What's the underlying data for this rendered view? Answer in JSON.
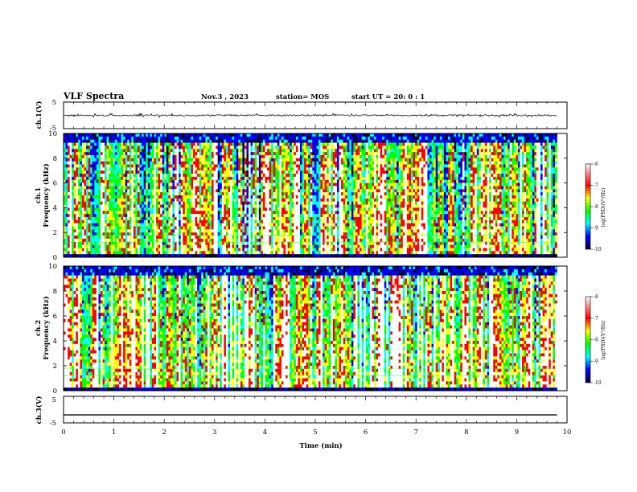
{
  "header": {
    "title": "VLF Spectra",
    "date": "Nov.3 , 2023",
    "station": "station= MOS",
    "start_ut": "start UT = 20: 0 : 1"
  },
  "chart_data": [
    {
      "type": "line",
      "panel": "ch1-waveform",
      "ylabel": "ch.1(V)",
      "ylim": [
        -5,
        5
      ],
      "y_ticks": [
        "5",
        "-5"
      ],
      "xlim": [
        0,
        10
      ],
      "description_values": {
        "signal_level_v": 0.0,
        "trace_extent_min": 9.8
      }
    },
    {
      "type": "heatmap",
      "panel": "ch1-spectrogram",
      "ylabel_top": "ch.1",
      "ylabel": "Frequency (kHz)",
      "ylim": [
        0,
        10
      ],
      "y_ticks": [
        "0",
        "2",
        "4",
        "6",
        "8",
        "10"
      ],
      "xlim": [
        0,
        10
      ],
      "colorbar": {
        "label": "log(PSD)(V²/Hz)",
        "ticks": [
          "-6",
          "-7",
          "-8",
          "-9",
          "-10"
        ],
        "range": [
          -10,
          -6
        ]
      }
    },
    {
      "type": "heatmap",
      "panel": "ch2-spectrogram",
      "ylabel_top": "ch.2",
      "ylabel": "Frequency (kHz)",
      "ylim": [
        0,
        10
      ],
      "y_ticks": [
        "0",
        "2",
        "4",
        "6",
        "8",
        "10"
      ],
      "xlim": [
        0,
        10
      ],
      "colorbar": {
        "label": "log(PSD)(V²/Hz)",
        "ticks": [
          "-6",
          "-7",
          "-8",
          "-9",
          "-10"
        ],
        "range": [
          -10,
          -6
        ]
      }
    },
    {
      "type": "line",
      "panel": "ch3-waveform",
      "ylabel": "ch.3(V)",
      "ylim": [
        -5,
        5
      ],
      "y_ticks": [
        "5",
        "-5"
      ],
      "xlim": [
        0,
        10
      ],
      "description_values": {
        "signal_level_v": -2.0,
        "trace_extent_min": 9.8
      }
    }
  ],
  "x_axis": {
    "label": "Time (min)",
    "ticks": [
      "0",
      "1",
      "2",
      "3",
      "4",
      "5",
      "6",
      "7",
      "8",
      "9",
      "10"
    ]
  },
  "colors": {
    "colormap": [
      "#ffffff",
      "#ff0000",
      "#ffff00",
      "#00ff00",
      "#00ffff",
      "#0000ff",
      "#000033"
    ],
    "axis": "#000000"
  }
}
